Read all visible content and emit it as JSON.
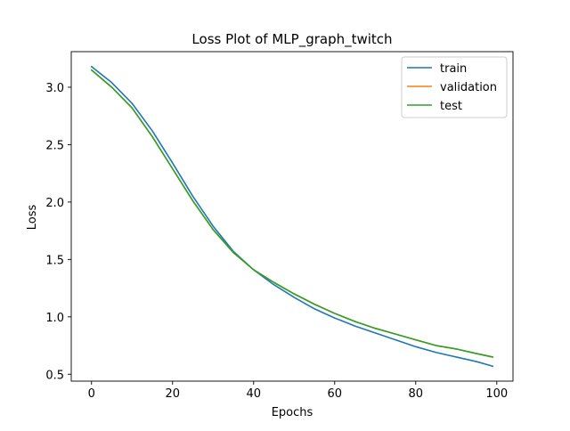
{
  "chart_data": {
    "type": "line",
    "title": "Loss Plot of MLP_graph_twitch",
    "xlabel": "Epochs",
    "ylabel": "Loss",
    "xlim": [
      -5,
      104
    ],
    "ylim": [
      0.44,
      3.31
    ],
    "xticks": [
      0,
      20,
      40,
      60,
      80,
      100
    ],
    "yticks": [
      0.5,
      1.0,
      1.5,
      2.0,
      2.5,
      3.0
    ],
    "grid": false,
    "legend_position": "top-right",
    "series": [
      {
        "name": "train",
        "color": "#1f77b4",
        "x": [
          0,
          5,
          10,
          15,
          20,
          25,
          30,
          35,
          40,
          45,
          50,
          55,
          60,
          65,
          70,
          75,
          80,
          85,
          90,
          95,
          99
        ],
        "y": [
          3.18,
          3.04,
          2.86,
          2.62,
          2.34,
          2.05,
          1.79,
          1.57,
          1.41,
          1.28,
          1.17,
          1.07,
          0.99,
          0.92,
          0.86,
          0.8,
          0.74,
          0.69,
          0.65,
          0.61,
          0.57
        ]
      },
      {
        "name": "validation",
        "color": "#ff7f0e",
        "x": [
          0,
          5,
          10,
          15,
          20,
          25,
          30,
          35,
          40,
          45,
          50,
          55,
          60,
          65,
          70,
          75,
          80,
          85,
          90,
          95,
          99
        ],
        "y": [
          3.15,
          3.0,
          2.82,
          2.57,
          2.29,
          2.01,
          1.76,
          1.56,
          1.41,
          1.3,
          1.2,
          1.11,
          1.03,
          0.96,
          0.9,
          0.85,
          0.8,
          0.75,
          0.72,
          0.68,
          0.65
        ]
      },
      {
        "name": "test",
        "color": "#2ca02c",
        "x": [
          0,
          5,
          10,
          15,
          20,
          25,
          30,
          35,
          40,
          45,
          50,
          55,
          60,
          65,
          70,
          75,
          80,
          85,
          90,
          95,
          99
        ],
        "y": [
          3.15,
          3.0,
          2.82,
          2.57,
          2.29,
          2.01,
          1.76,
          1.56,
          1.41,
          1.3,
          1.2,
          1.11,
          1.03,
          0.96,
          0.9,
          0.85,
          0.8,
          0.75,
          0.72,
          0.68,
          0.65
        ]
      }
    ]
  }
}
